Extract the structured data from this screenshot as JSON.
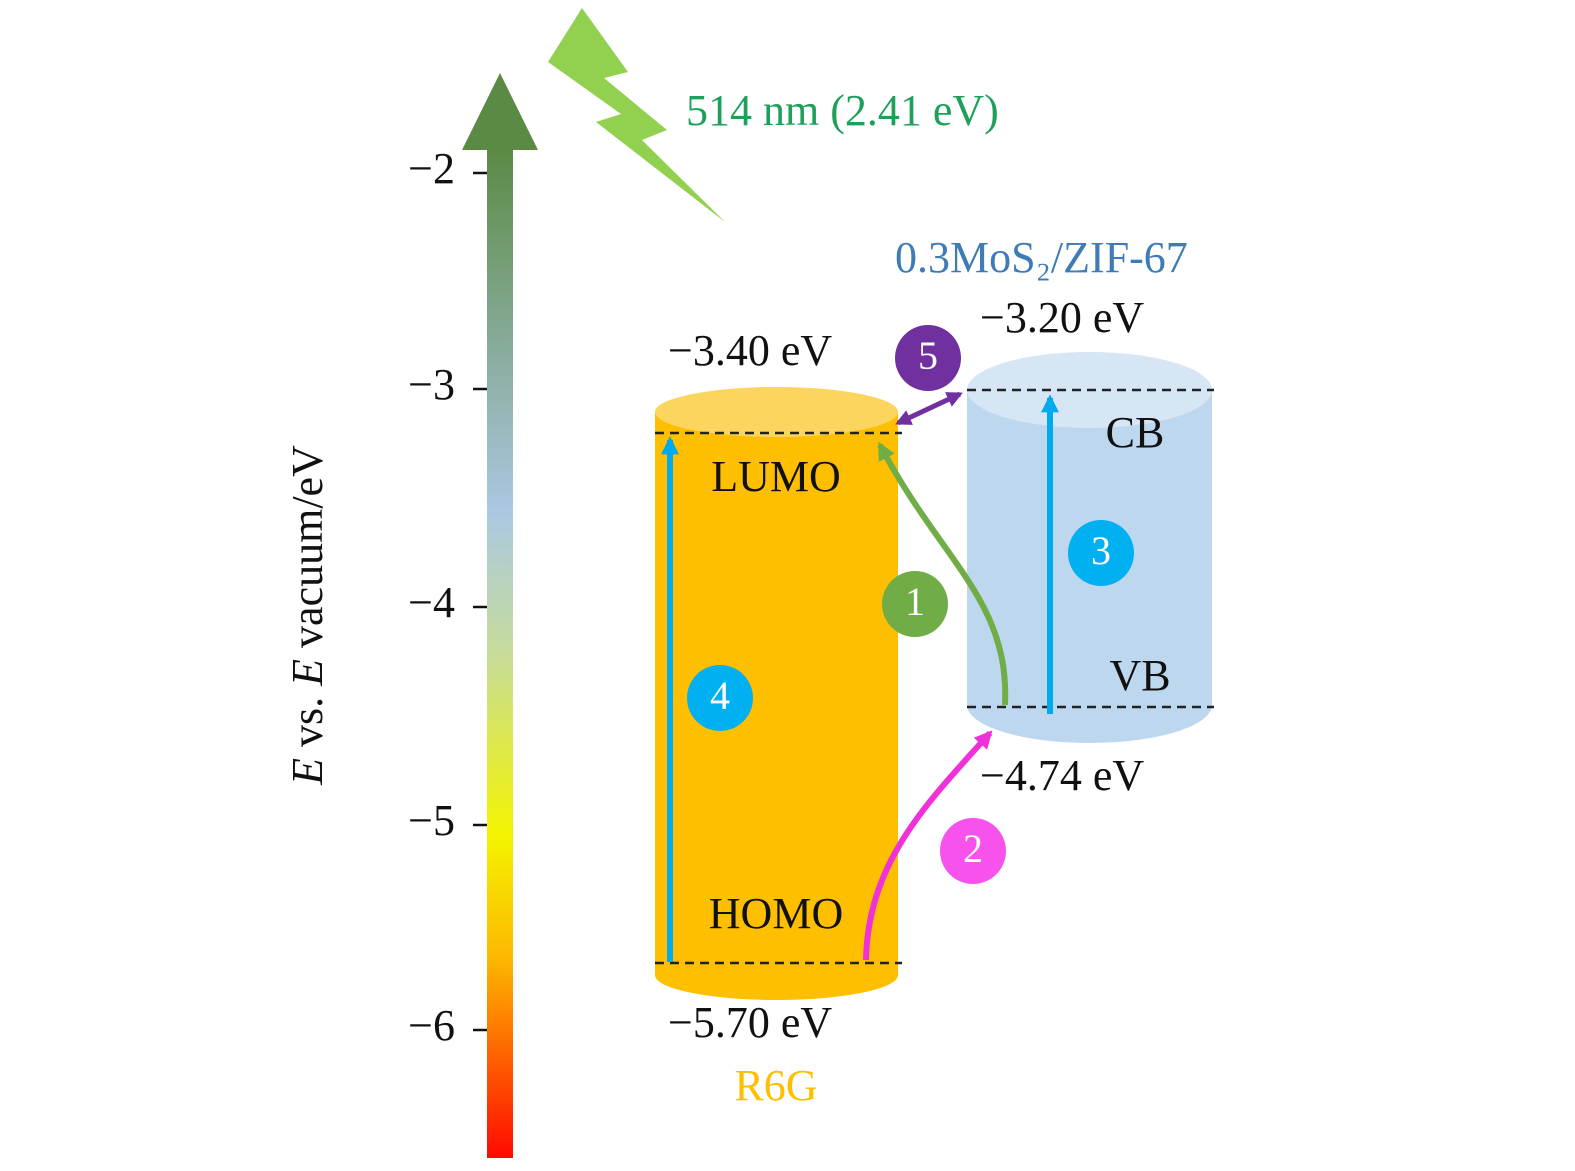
{
  "axis": {
    "label": [
      "E",
      " vs. ",
      "E",
      " vacuum/eV"
    ],
    "ticks": [
      "−2",
      "−3",
      "−4",
      "−5",
      "−6"
    ]
  },
  "light": {
    "label": "514 nm (2.41 eV)"
  },
  "materials": [
    {
      "name": "R6G",
      "upper_level": "LUMO",
      "lower_level": "HOMO",
      "upper_energy": "−3.40 eV",
      "lower_energy": "−5.70 eV"
    },
    {
      "name": "0.3MoS₂/ZIF-67",
      "upper_level": "CB",
      "lower_level": "VB",
      "upper_energy": "−3.20 eV",
      "lower_energy": "−4.74 eV"
    }
  ],
  "steps": [
    "1",
    "2",
    "3",
    "4",
    "5"
  ]
}
